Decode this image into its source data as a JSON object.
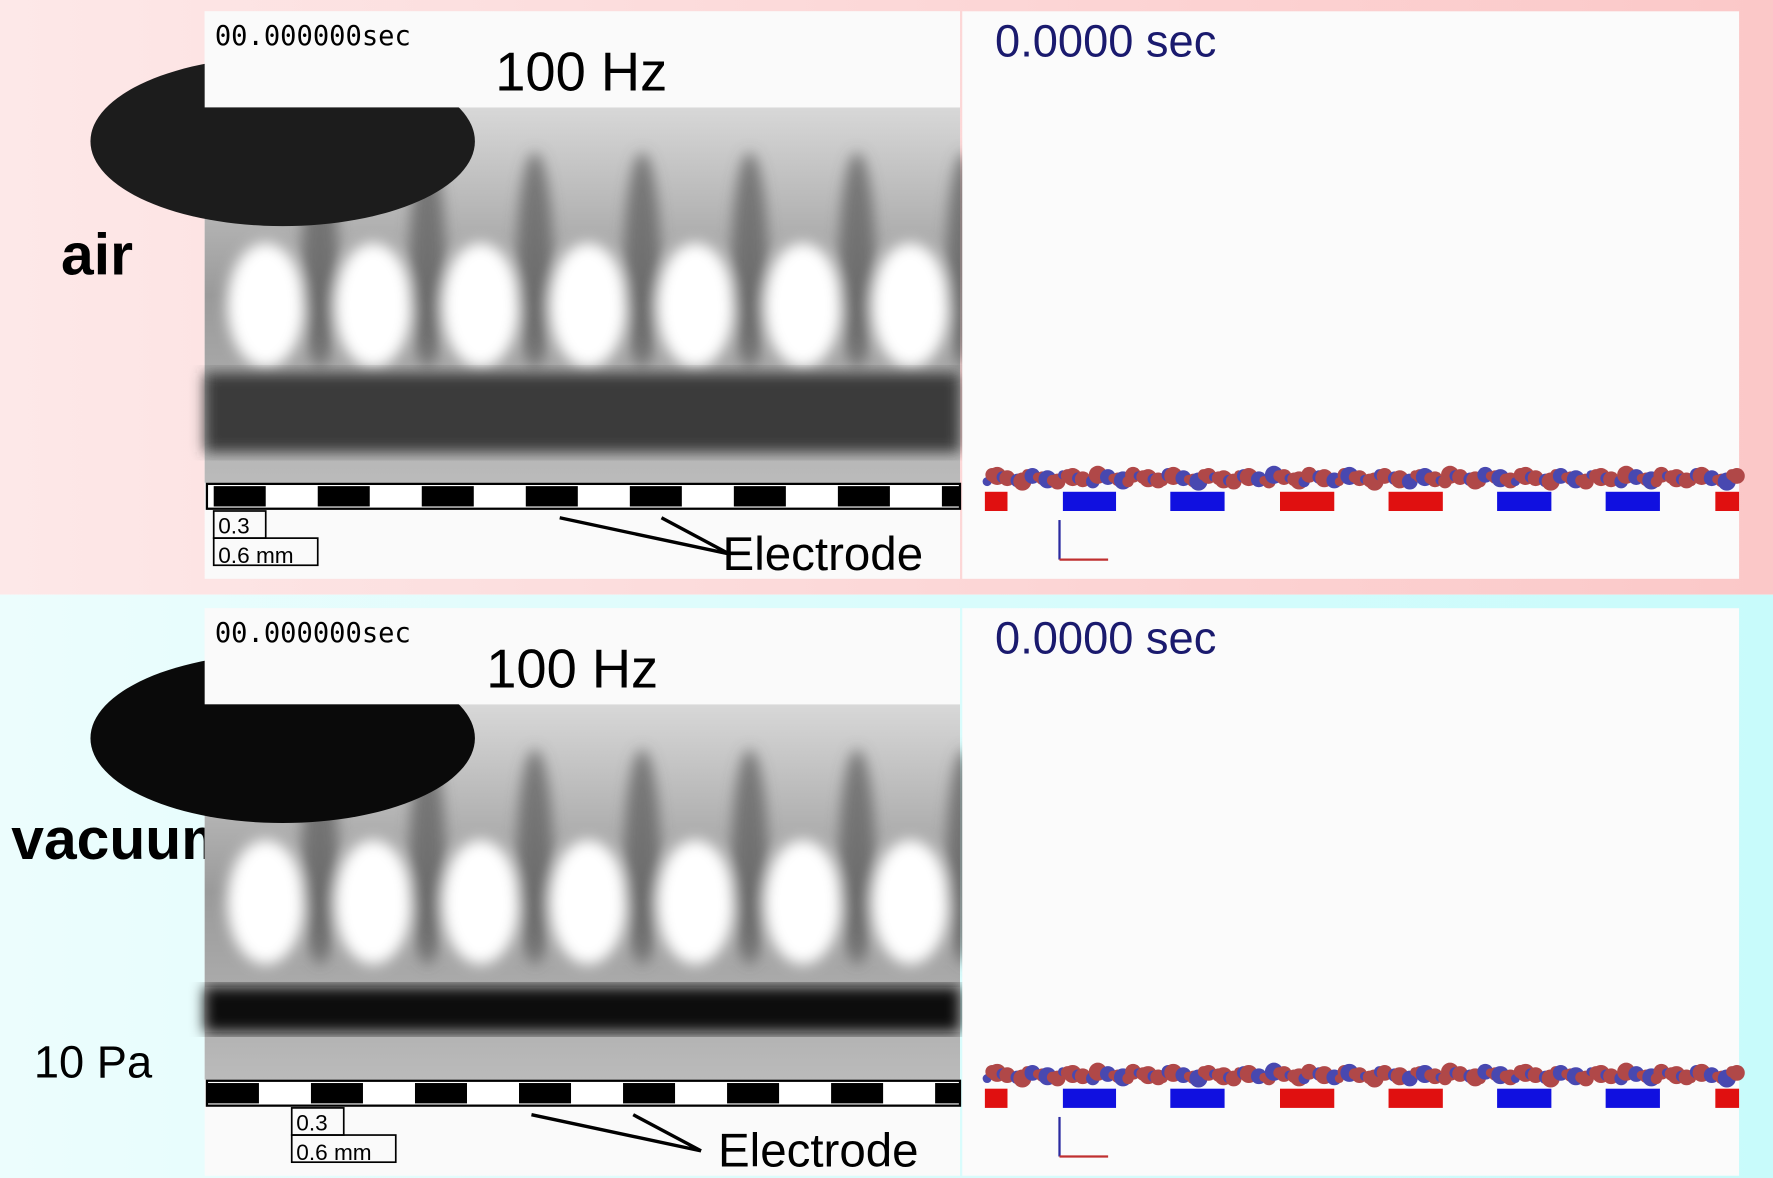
{
  "panels": [
    {
      "medium": "air",
      "photo": {
        "timestamp": "00.000000sec",
        "frequency": "100 Hz",
        "scale_small": "0.3",
        "scale_large": "0.6 mm",
        "annotation": "Electrode"
      },
      "simulation": {
        "time": "0.0000 sec"
      }
    },
    {
      "medium": "vacuum",
      "pressure": "10 Pa",
      "photo": {
        "timestamp": "00.000000sec",
        "frequency": "100 Hz",
        "scale_small": "0.3",
        "scale_large": "0.6 mm",
        "annotation": "Electrode"
      },
      "simulation": {
        "time": "0.0000 sec"
      }
    }
  ]
}
